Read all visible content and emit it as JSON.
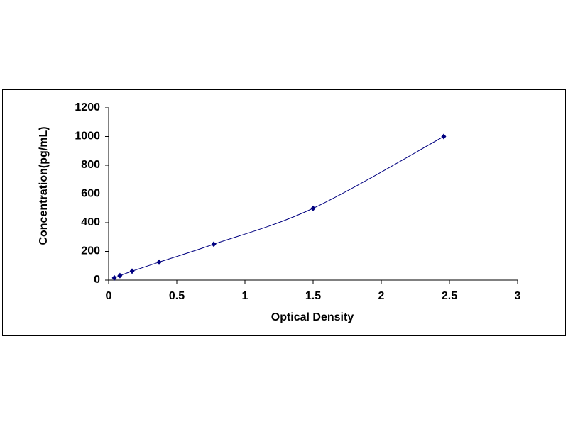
{
  "chart_data": {
    "type": "scatter-line",
    "x_label": "Optical Density",
    "y_label": "Concentration(pg/mL)",
    "x": [
      0.042,
      0.083,
      0.172,
      0.37,
      0.771,
      1.5,
      2.458
    ],
    "values": [
      15.6,
      31.2,
      62.5,
      125,
      250,
      500,
      1000
    ],
    "color": "#000080",
    "xlim": [
      0,
      3
    ],
    "xticks": [
      0,
      0.5,
      1,
      1.5,
      2,
      2.5,
      3
    ],
    "ylim": [
      0,
      1200
    ],
    "yticks": [
      0,
      200,
      400,
      600,
      800,
      1000,
      1200
    ]
  }
}
